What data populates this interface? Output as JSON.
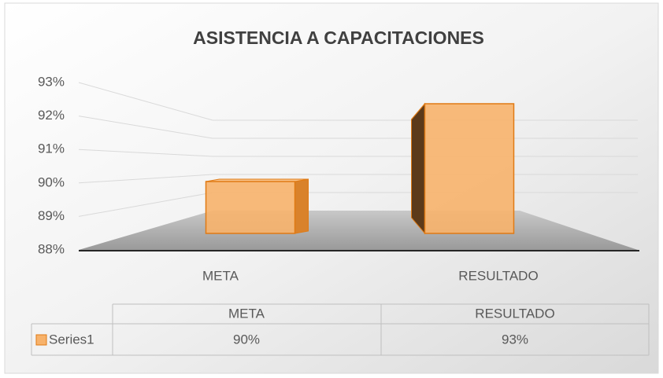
{
  "chart_data": {
    "type": "bar3d",
    "title": "ASISTENCIA A CAPACITACIONES",
    "categories": [
      "META",
      "RESULTADO"
    ],
    "series": [
      {
        "name": "Series1",
        "color": "#f7b26b",
        "values": [
          90,
          93
        ],
        "value_labels": [
          "90%",
          "93%"
        ]
      }
    ],
    "ylim": [
      88,
      93
    ],
    "yticks": [
      {
        "value": 88,
        "label": "88%"
      },
      {
        "value": 89,
        "label": "89%"
      },
      {
        "value": 90,
        "label": "90%"
      },
      {
        "value": 91,
        "label": "91%"
      },
      {
        "value": 92,
        "label": "92%"
      },
      {
        "value": 93,
        "label": "93%"
      }
    ],
    "grid": true,
    "data_table": true
  }
}
